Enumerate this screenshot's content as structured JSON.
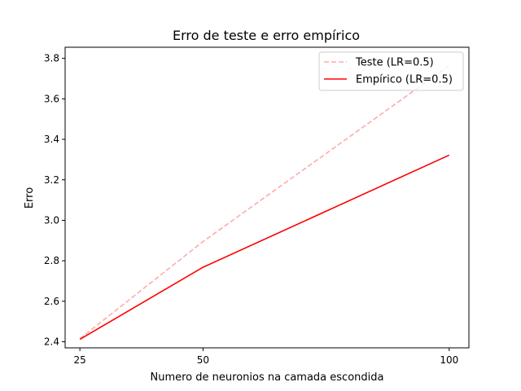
{
  "chart_data": {
    "type": "line",
    "title": "Erro de teste e erro empírico",
    "xlabel": "Numero de neuronios na camada escondida",
    "ylabel": "Erro",
    "x": [
      25,
      50,
      100
    ],
    "x_ticks": [
      "25",
      "50",
      "100"
    ],
    "y_ticks": [
      "2.4",
      "2.6",
      "2.8",
      "3.0",
      "3.2",
      "3.4",
      "3.6",
      "3.8"
    ],
    "xlim": [
      22,
      104
    ],
    "ylim": [
      2.37,
      3.855
    ],
    "grid": false,
    "legend_position": "upper-right",
    "series": [
      {
        "name": "Teste (LR=0.5)",
        "values": [
          2.415,
          2.895,
          3.765
        ],
        "color": "#ffaaaa",
        "style": "dashed"
      },
      {
        "name": "Empírico (LR=0.5)",
        "values": [
          2.412,
          2.768,
          3.322
        ],
        "color": "#ff0000",
        "style": "solid"
      }
    ]
  }
}
